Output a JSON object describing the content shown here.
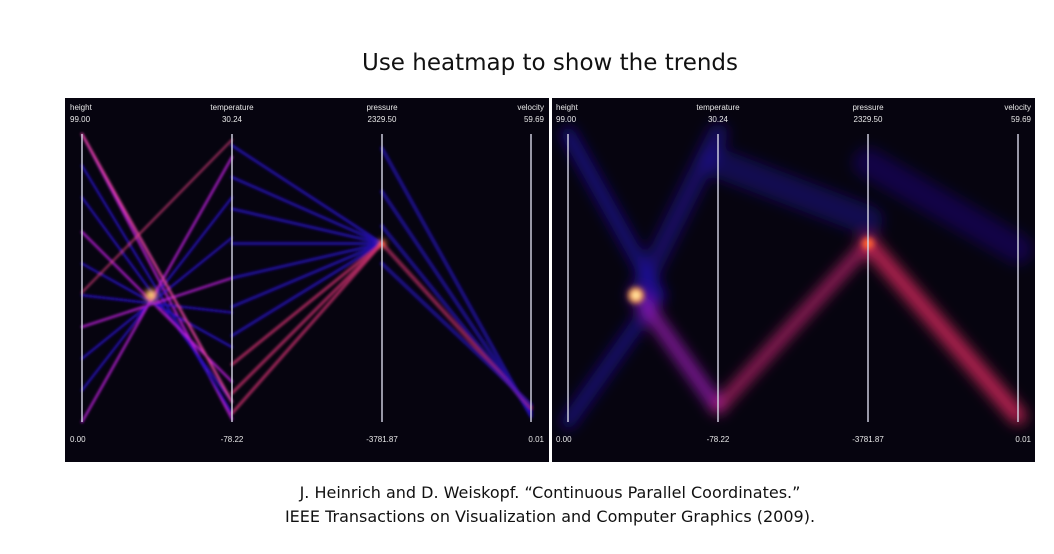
{
  "title": "Use heatmap to show the trends",
  "citation": {
    "line1": "J. Heinrich and D. Weiskopf. “Continuous Parallel Coordinates.”",
    "line2": "IEEE Transactions on Visualization and Computer Graphics (2009)."
  },
  "chart_data": [
    {
      "type": "parallel-coordinates",
      "title": "",
      "rendering": "discrete lines density heatmap",
      "axes": [
        {
          "name": "height",
          "max": 99.0,
          "min": 0.0,
          "max_label": "99.00",
          "min_label": "0.00"
        },
        {
          "name": "temperature",
          "max": 30.24,
          "min": -78.22,
          "max_label": "30.24",
          "min_label": "-78.22"
        },
        {
          "name": "pressure",
          "max": 2329.5,
          "min": -3781.87,
          "max_label": "2329.50",
          "min_label": "-3781.87"
        },
        {
          "name": "velocity",
          "max": 59.69,
          "min": 0.01,
          "max_label": "59.69",
          "min_label": "0.01"
        }
      ],
      "colors": {
        "background": "#06040f",
        "low": "#2a12c8",
        "mid": "#c020e0",
        "high": "#ffd040"
      }
    },
    {
      "type": "parallel-coordinates",
      "title": "",
      "rendering": "continuous parallel coordinates density heatmap",
      "axes": [
        {
          "name": "height",
          "max": 99.0,
          "min": 0.0,
          "max_label": "99.00",
          "min_label": "0.00"
        },
        {
          "name": "temperature",
          "max": 30.24,
          "min": -78.22,
          "max_label": "30.24",
          "min_label": "-78.22"
        },
        {
          "name": "pressure",
          "max": 2329.5,
          "min": -3781.87,
          "max_label": "2329.50",
          "min_label": "-3781.87"
        },
        {
          "name": "velocity",
          "max": 59.69,
          "min": 0.01,
          "max_label": "59.69",
          "min_label": "0.01"
        }
      ],
      "colors": {
        "background": "#06040f",
        "low": "#2a12c8",
        "mid": "#c020e0",
        "high": "#ffd040"
      }
    }
  ]
}
